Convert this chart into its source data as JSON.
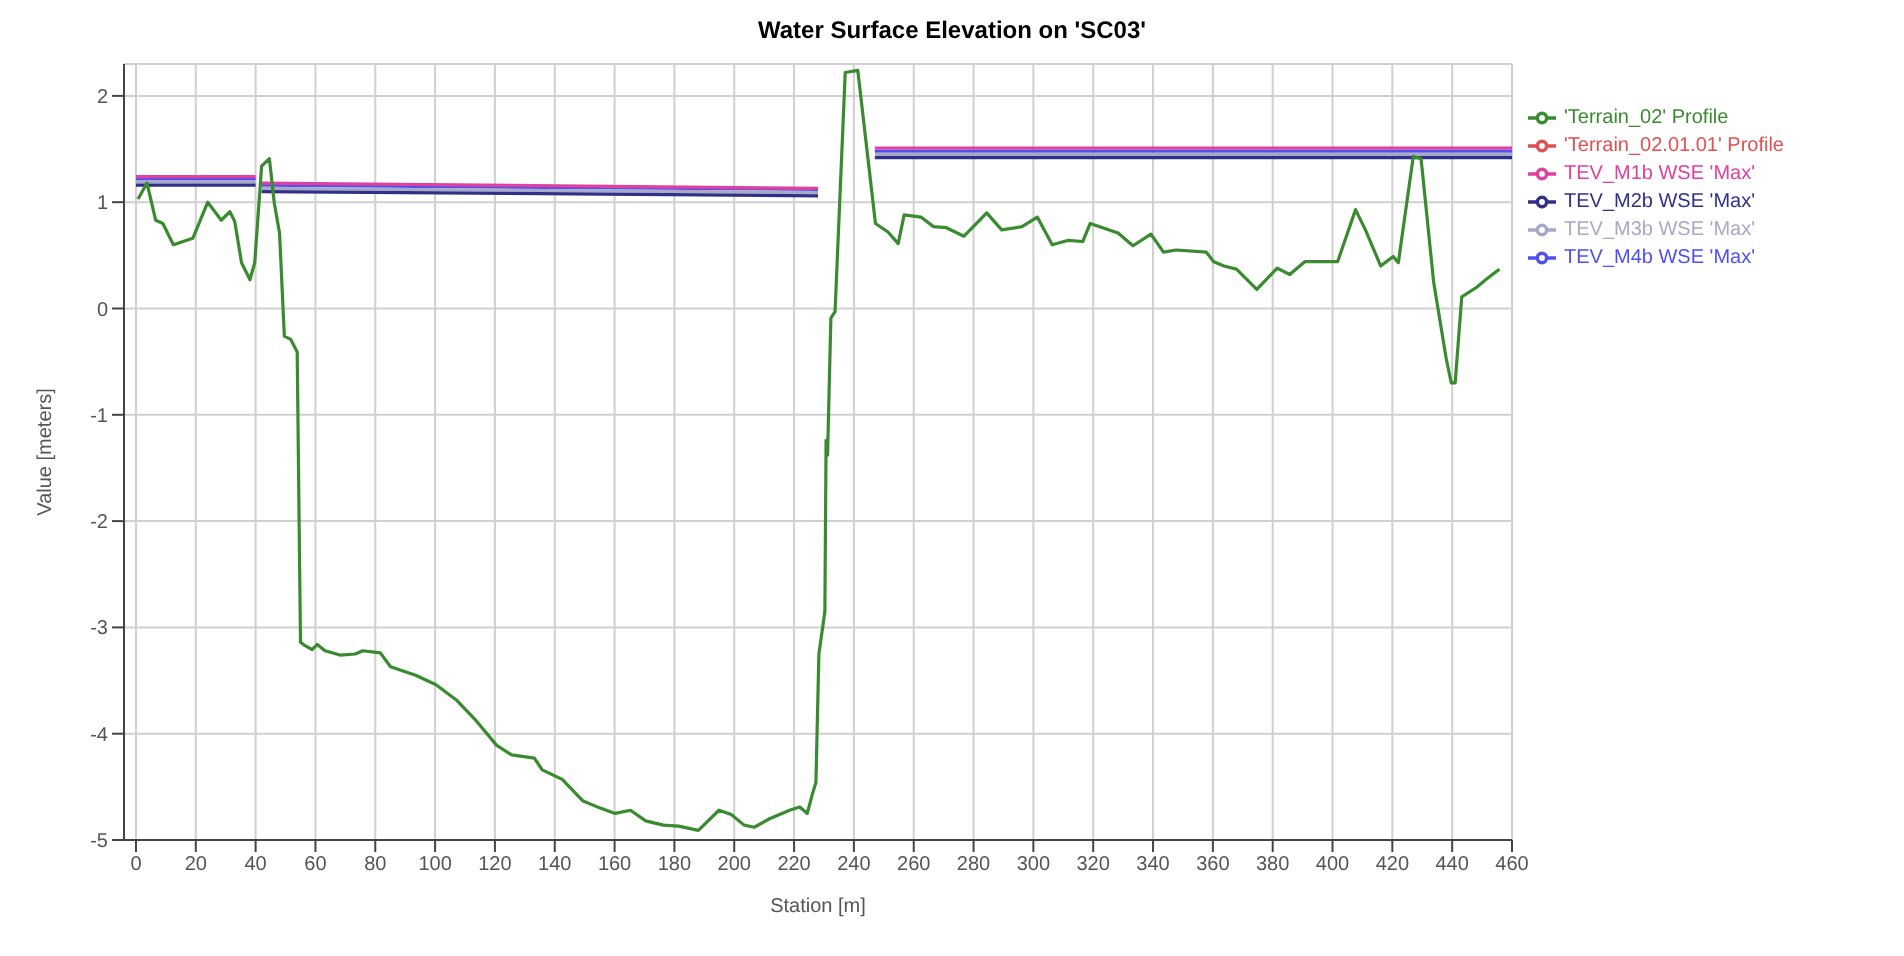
{
  "chart_data": {
    "type": "line",
    "title": "Water Surface Elevation on 'SC03'",
    "xlabel": "Station [m]",
    "ylabel": "Value [meters]",
    "xlim": [
      -4,
      460
    ],
    "ylim": [
      -5,
      2.3
    ],
    "xticks": [
      0,
      20,
      40,
      60,
      80,
      100,
      120,
      140,
      160,
      180,
      200,
      220,
      240,
      260,
      280,
      300,
      320,
      340,
      360,
      380,
      400,
      420,
      440,
      460
    ],
    "yticks": [
      -5,
      -4,
      -3,
      -2,
      -1,
      0,
      1,
      2
    ],
    "grid": true,
    "legend": "right",
    "marker": "none",
    "line_style": "solid",
    "series": [
      {
        "name": "TEV_M4b WSE 'Max'",
        "color": "#5050f0",
        "x": [
          0,
          40,
          41,
          42,
          228,
          237,
          247,
          460
        ],
        "values": [
          1.22,
          1.22,
          null,
          1.16,
          1.12,
          null,
          1.48,
          1.48
        ]
      },
      {
        "name": "TEV_M3b WSE 'Max'",
        "color": "#a8a8c8",
        "x": [
          0,
          40,
          41,
          42,
          228,
          237,
          247,
          460
        ],
        "values": [
          1.19,
          1.19,
          null,
          1.13,
          1.09,
          null,
          1.45,
          1.45
        ]
      },
      {
        "name": "TEV_M2b WSE 'Max'",
        "color": "#303088",
        "x": [
          0,
          40,
          41,
          42,
          228,
          237,
          247,
          460
        ],
        "values": [
          1.16,
          1.16,
          null,
          1.1,
          1.06,
          null,
          1.42,
          1.42
        ]
      },
      {
        "name": "TEV_M1b WSE 'Max'",
        "color": "#e040a0",
        "x": [
          0,
          40,
          41,
          42,
          228,
          237,
          247,
          460
        ],
        "values": [
          1.24,
          1.24,
          null,
          1.18,
          1.13,
          null,
          1.51,
          1.51
        ]
      },
      {
        "name": "'Terrain_02.01.01' Profile",
        "color": "#e05050"
      },
      {
        "name": "'Terrain_02' Profile",
        "color": "#3a8a30",
        "x": [
          0.7,
          3.7,
          6.6,
          9,
          12.5,
          19,
          24,
          28.5,
          31.4,
          33,
          35.3,
          38.1,
          39.7,
          42,
          44.6,
          46.2,
          48,
          49.6,
          51.7,
          53.9,
          55,
          56.4,
          58.9,
          60.6,
          63.2,
          68.2,
          73.3,
          75.8,
          81.7,
          85.1,
          93.5,
          100.3,
          107,
          113.8,
          120.6,
          125.6,
          133.2,
          135.8,
          142.5,
          149.3,
          155.2,
          160.2,
          165.3,
          170.4,
          176.3,
          181.4,
          188,
          194.9,
          199,
          203.3,
          206.7,
          211.8,
          218.5,
          221.9,
          224.4,
          226.1,
          227.3,
          228.3,
          230.3,
          230.7,
          231.2,
          232.3,
          233.7,
          237.1,
          241.3,
          243.8,
          247.2,
          251.4,
          254.8,
          256.8,
          262.4,
          266.6,
          270.9,
          276.8,
          281,
          284.4,
          289.4,
          296.2,
          301.3,
          306.3,
          311.4,
          316.5,
          319,
          328.3,
          333.3,
          339.3,
          343.5,
          347.7,
          357.8,
          360.3,
          363.7,
          367.9,
          374.7,
          381.5,
          385.7,
          390.7,
          395.8,
          401.7,
          407.7,
          411,
          416.1,
          420.3,
          422,
          427,
          429.6,
          433.8,
          438,
          439.7,
          441,
          443.2,
          448.2,
          451.6,
          455.8
        ],
        "values": [
          1.03,
          1.18,
          0.83,
          0.8,
          0.6,
          0.66,
          1.0,
          0.83,
          0.91,
          0.82,
          0.43,
          0.27,
          0.43,
          1.34,
          1.41,
          1.0,
          0.71,
          -0.26,
          -0.29,
          -0.41,
          -3.14,
          -3.17,
          -3.21,
          -3.16,
          -3.22,
          -3.26,
          -3.25,
          -3.22,
          -3.24,
          -3.37,
          -3.45,
          -3.54,
          -3.68,
          -3.88,
          -4.11,
          -4.2,
          -4.23,
          -4.34,
          -4.43,
          -4.63,
          -4.7,
          -4.75,
          -4.72,
          -4.82,
          -4.86,
          -4.87,
          -4.91,
          -4.72,
          -4.76,
          -4.86,
          -4.88,
          -4.8,
          -4.72,
          -4.69,
          -4.75,
          -4.57,
          -4.46,
          -3.25,
          -2.85,
          -1.24,
          -1.38,
          -0.09,
          -0.03,
          2.22,
          2.24,
          1.63,
          0.8,
          0.72,
          0.61,
          0.88,
          0.86,
          0.77,
          0.76,
          0.68,
          0.8,
          0.9,
          0.74,
          0.77,
          0.86,
          0.6,
          0.64,
          0.63,
          0.8,
          0.71,
          0.59,
          0.7,
          0.53,
          0.55,
          0.53,
          0.44,
          0.4,
          0.37,
          0.18,
          0.38,
          0.32,
          0.44,
          0.44,
          0.44,
          0.93,
          0.74,
          0.4,
          0.49,
          0.43,
          1.43,
          1.41,
          0.25,
          -0.47,
          -0.7,
          -0.7,
          0.11,
          0.2,
          0.28,
          0.37
        ]
      }
    ]
  }
}
